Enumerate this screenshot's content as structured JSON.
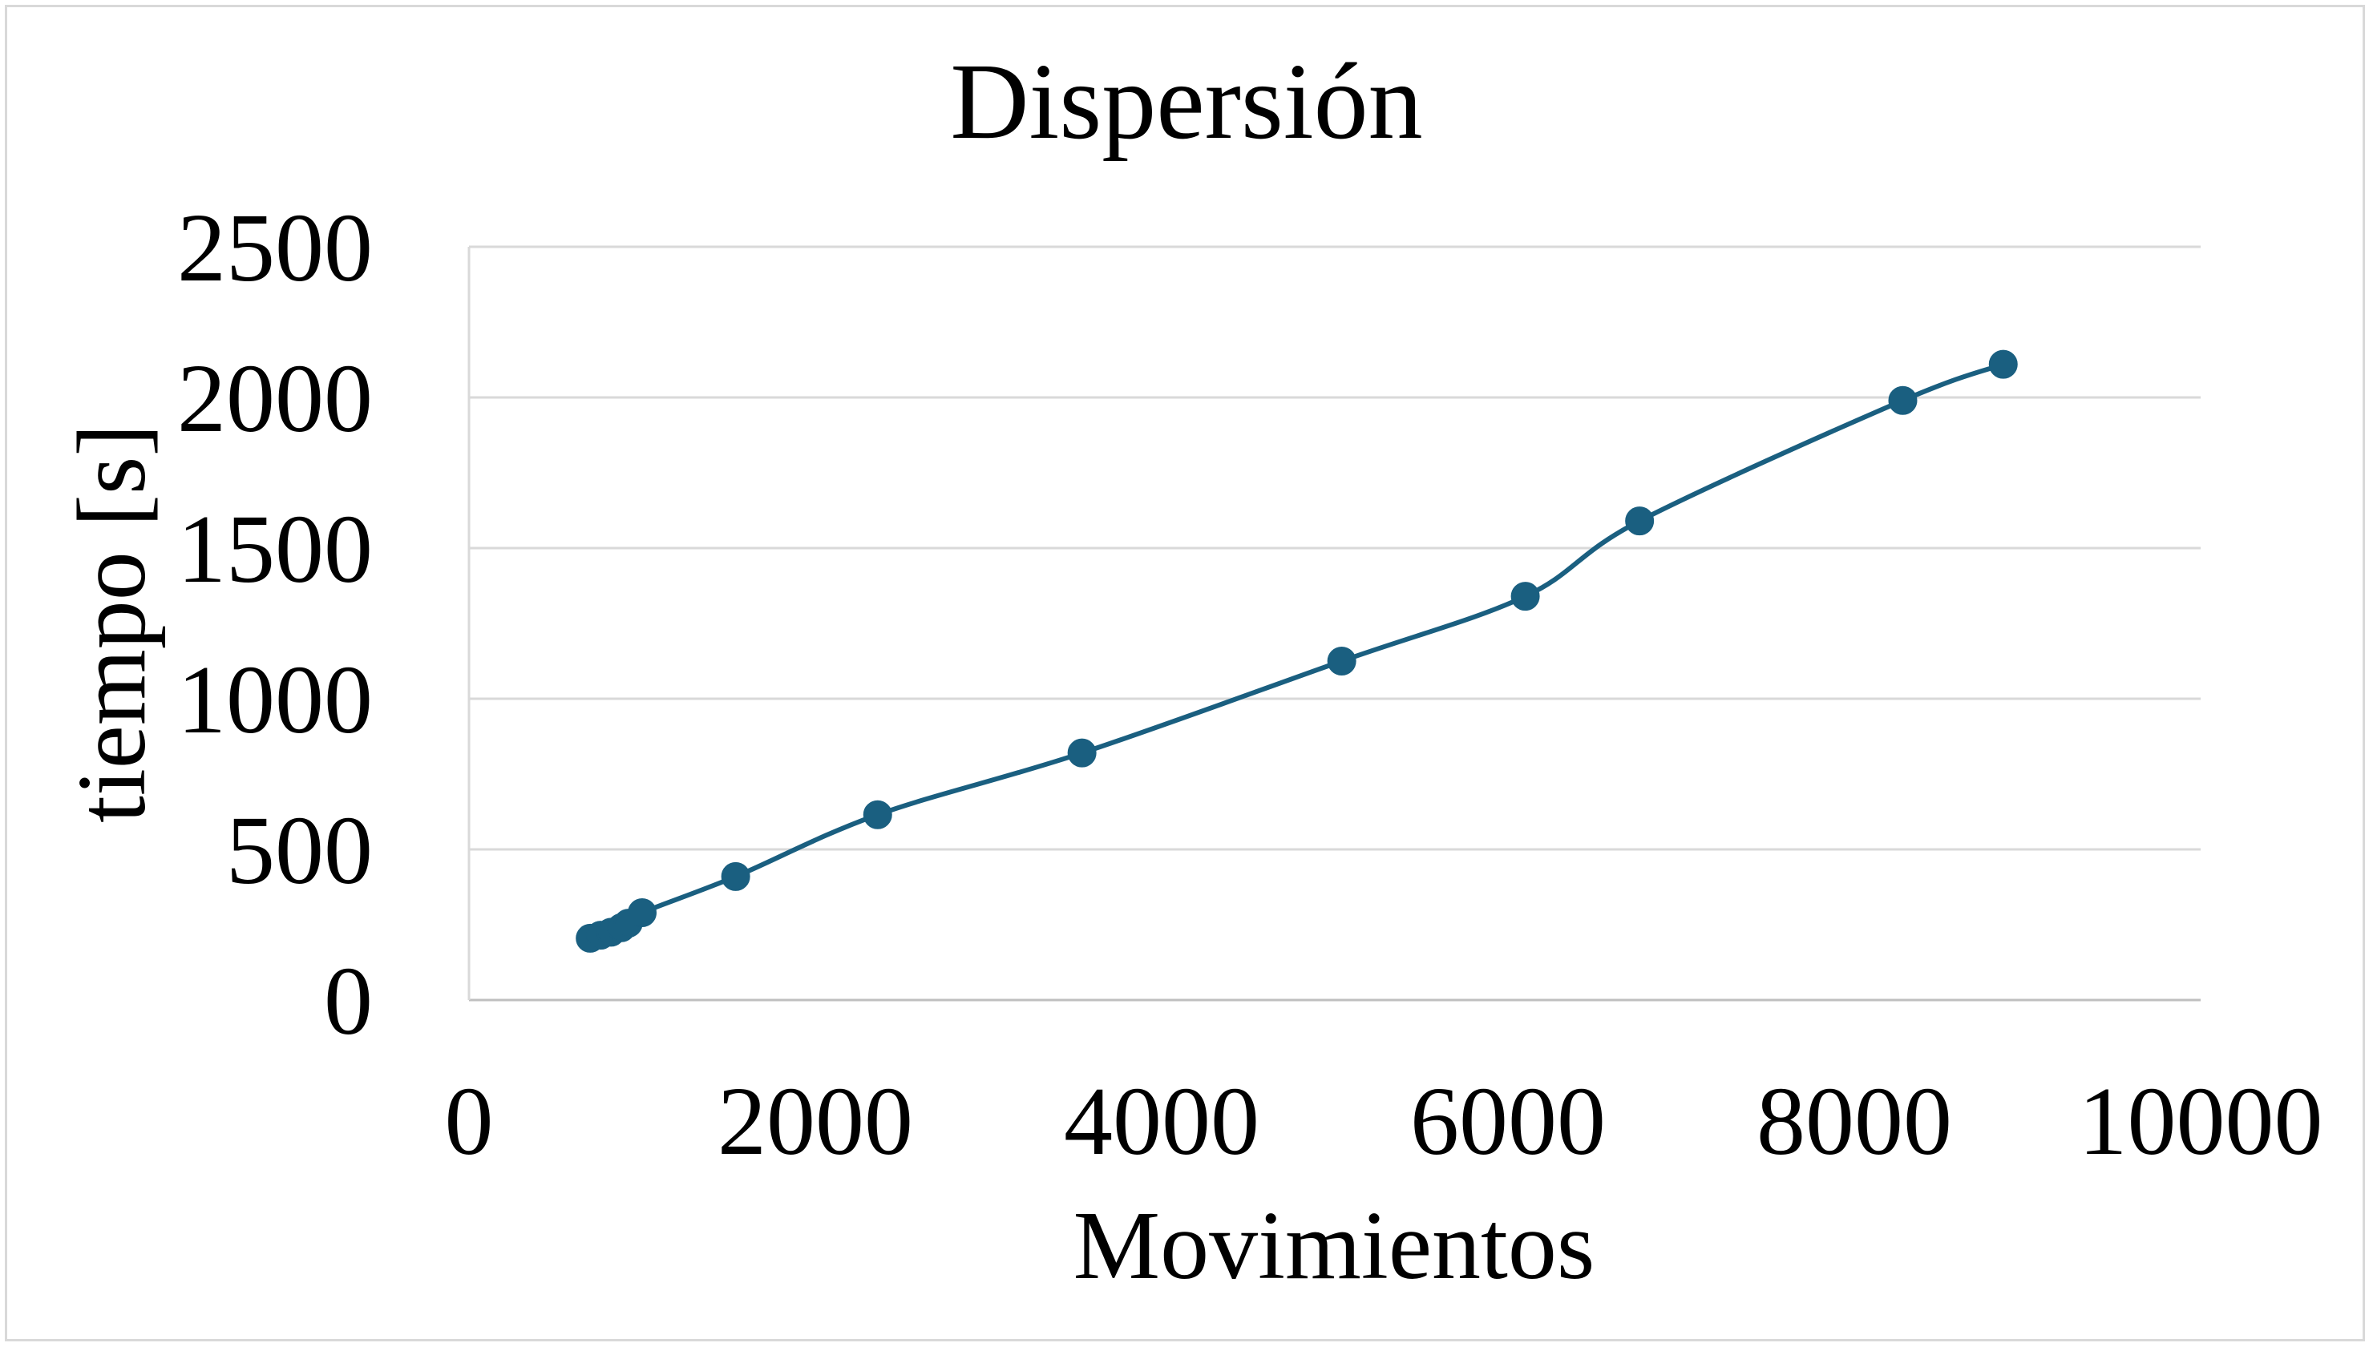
{
  "chart_data": {
    "type": "scatter",
    "title": "Dispersión",
    "xlabel": "Movimientos",
    "ylabel": "tiempo [s]",
    "xlim": [
      0,
      10000
    ],
    "ylim": [
      0,
      2500
    ],
    "xticks": [
      "0",
      "2000",
      "4000",
      "6000",
      "8000",
      "10000"
    ],
    "yticks": [
      "0",
      "500",
      "1000",
      "1500",
      "2000",
      "2500"
    ],
    "grid": "horizontal",
    "line_style": "smooth",
    "series_color": "#1a5f80",
    "series": [
      {
        "points": [
          {
            "x": 700,
            "y": 205
          },
          {
            "x": 760,
            "y": 215
          },
          {
            "x": 820,
            "y": 225
          },
          {
            "x": 880,
            "y": 240
          },
          {
            "x": 920,
            "y": 255
          },
          {
            "x": 1000,
            "y": 290
          },
          {
            "x": 1540,
            "y": 410
          },
          {
            "x": 2360,
            "y": 615
          },
          {
            "x": 3540,
            "y": 820
          },
          {
            "x": 5040,
            "y": 1125
          },
          {
            "x": 6100,
            "y": 1340
          },
          {
            "x": 6760,
            "y": 1590
          },
          {
            "x": 8280,
            "y": 1990
          },
          {
            "x": 8860,
            "y": 2110
          }
        ]
      }
    ]
  }
}
